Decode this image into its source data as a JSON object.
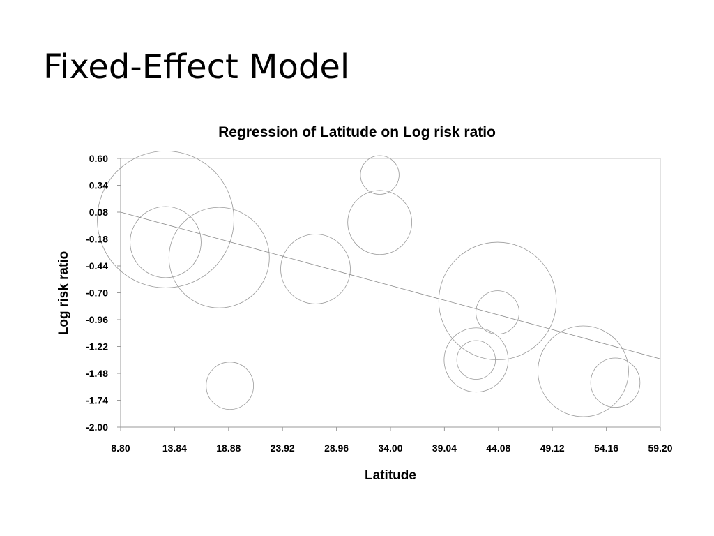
{
  "slide": {
    "title": "Fixed-Effect Model"
  },
  "chart_data": {
    "type": "scatter",
    "title": "Regression of Latitude on Log risk ratio",
    "xlabel": "Latitude",
    "ylabel": "Log risk ratio",
    "xlim": [
      8.8,
      59.2
    ],
    "ylim": [
      -2.0,
      0.6
    ],
    "x_ticks": [
      "8.80",
      "13.84",
      "18.88",
      "23.92",
      "28.96",
      "34.00",
      "39.04",
      "44.08",
      "49.12",
      "54.16",
      "59.20"
    ],
    "y_ticks": [
      "0.60",
      "0.34",
      "0.08",
      "-0.18",
      "-0.44",
      "-0.70",
      "-0.96",
      "-1.22",
      "-1.48",
      "-1.74",
      "-2.00"
    ],
    "grid": false,
    "legend": "none",
    "bubble_color": "#9a9a9a",
    "points": [
      {
        "x": 13,
        "y": 0.01,
        "weight": 100
      },
      {
        "x": 13,
        "y": -0.21,
        "weight": 27
      },
      {
        "x": 18,
        "y": -0.36,
        "weight": 54
      },
      {
        "x": 19,
        "y": -1.6,
        "weight": 12
      },
      {
        "x": 27,
        "y": -0.47,
        "weight": 26
      },
      {
        "x": 33,
        "y": 0.44,
        "weight": 8
      },
      {
        "x": 33,
        "y": -0.02,
        "weight": 22
      },
      {
        "x": 42,
        "y": -1.35,
        "weight": 22
      },
      {
        "x": 42,
        "y": -1.35,
        "weight": 8
      },
      {
        "x": 44,
        "y": -0.78,
        "weight": 74
      },
      {
        "x": 44,
        "y": -0.89,
        "weight": 10
      },
      {
        "x": 52,
        "y": -1.46,
        "weight": 44
      },
      {
        "x": 55,
        "y": -1.57,
        "weight": 13
      }
    ],
    "regression_line": {
      "x": [
        8.8,
        59.2
      ],
      "y": [
        0.08,
        -1.34
      ]
    }
  }
}
